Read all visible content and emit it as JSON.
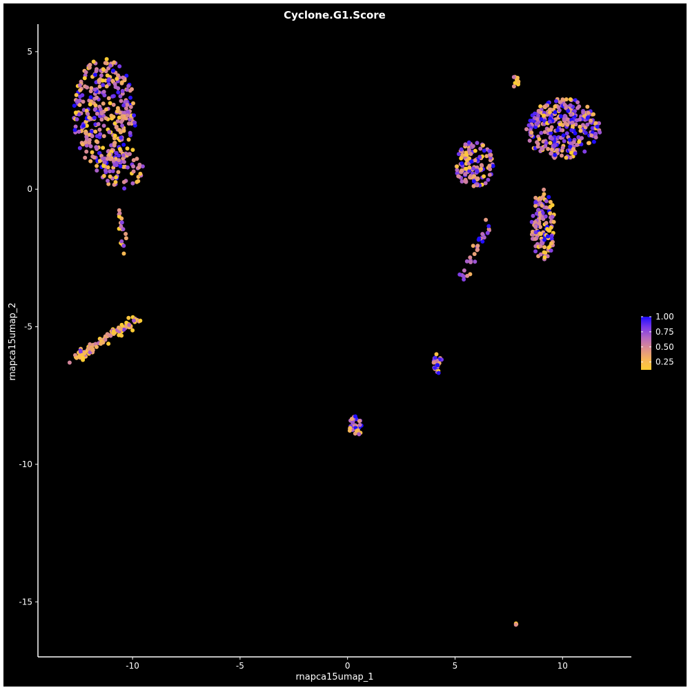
{
  "chart_data": {
    "type": "scatter",
    "title": "Cyclone.G1.Score",
    "xlabel": "rnapca15umap_1",
    "ylabel": "rnapca15umap_2",
    "xlim": [
      -14.4,
      13.2
    ],
    "ylim": [
      -17.0,
      6.0
    ],
    "xticks": [
      -10,
      -5,
      0,
      5,
      10
    ],
    "xtick_labels": [
      "-10",
      "-5",
      "0",
      "5",
      "10"
    ],
    "yticks": [
      5,
      0,
      -5,
      -10,
      -15
    ],
    "ytick_labels": [
      "5",
      "0",
      "-5",
      "-10",
      "-15"
    ],
    "grid": false,
    "background": "#000000",
    "foreground": "#ffffff",
    "legend": {
      "position": "right",
      "range": [
        0.12,
        1.0
      ],
      "ticks": [
        1.0,
        0.75,
        0.5,
        0.25
      ],
      "tick_labels": [
        "1.00",
        "0.75",
        "0.50",
        "0.25"
      ],
      "gradient": [
        "#1f0dff",
        "#7b3ae8",
        "#b668c0",
        "#dd8e8e",
        "#f6b45c",
        "#ffcc33"
      ]
    },
    "clusters": [
      {
        "name": "upper-left",
        "n": 330,
        "shape": "ellipse",
        "cx": -11.3,
        "cy": 2.7,
        "rx": 1.45,
        "ry": 2.1,
        "mean": 0.55
      },
      {
        "name": "upper-left-lower-lobe",
        "n": 70,
        "shape": "ellipse",
        "cx": -10.5,
        "cy": 0.8,
        "rx": 1.0,
        "ry": 0.8,
        "mean": 0.5
      },
      {
        "name": "upper-left-stem",
        "n": 20,
        "shape": "line",
        "x0": -10.6,
        "y0": -0.8,
        "x1": -10.3,
        "y1": -2.7,
        "w": 0.12,
        "mean": 0.4
      },
      {
        "name": "left-diagonal",
        "n": 110,
        "shape": "line",
        "x0": -12.8,
        "y0": -6.2,
        "x1": -9.7,
        "y1": -4.65,
        "w": 0.18,
        "mean": 0.35
      },
      {
        "name": "right-main",
        "n": 320,
        "shape": "ellipse",
        "cx": 10.0,
        "cy": 2.2,
        "rx": 1.75,
        "ry": 1.1,
        "mean": 0.6
      },
      {
        "name": "right-top",
        "n": 12,
        "shape": "ellipse",
        "cx": 7.8,
        "cy": 3.9,
        "rx": 0.15,
        "ry": 0.25,
        "mean": 0.1
      },
      {
        "name": "right-arm",
        "n": 130,
        "shape": "ellipse",
        "cx": 9.1,
        "cy": -1.3,
        "rx": 0.55,
        "ry": 1.3,
        "mean": 0.5
      },
      {
        "name": "mid-right",
        "n": 130,
        "shape": "ellipse",
        "cx": 5.9,
        "cy": 0.9,
        "rx": 0.9,
        "ry": 0.85,
        "mean": 0.55
      },
      {
        "name": "mid-right-tail",
        "n": 30,
        "shape": "line",
        "x0": 5.3,
        "y0": -3.3,
        "x1": 6.6,
        "y1": -1.2,
        "w": 0.15,
        "mean": 0.55
      },
      {
        "name": "small-5",
        "n": 28,
        "shape": "ellipse",
        "cx": 4.2,
        "cy": -6.3,
        "rx": 0.2,
        "ry": 0.4,
        "mean": 0.55
      },
      {
        "name": "small-0",
        "n": 35,
        "shape": "ellipse",
        "cx": 0.4,
        "cy": -8.6,
        "rx": 0.35,
        "ry": 0.35,
        "mean": 0.7
      },
      {
        "name": "bottom",
        "n": 3,
        "shape": "ellipse",
        "cx": 7.8,
        "cy": -15.8,
        "rx": 0.05,
        "ry": 0.05,
        "mean": 0.5
      }
    ]
  }
}
